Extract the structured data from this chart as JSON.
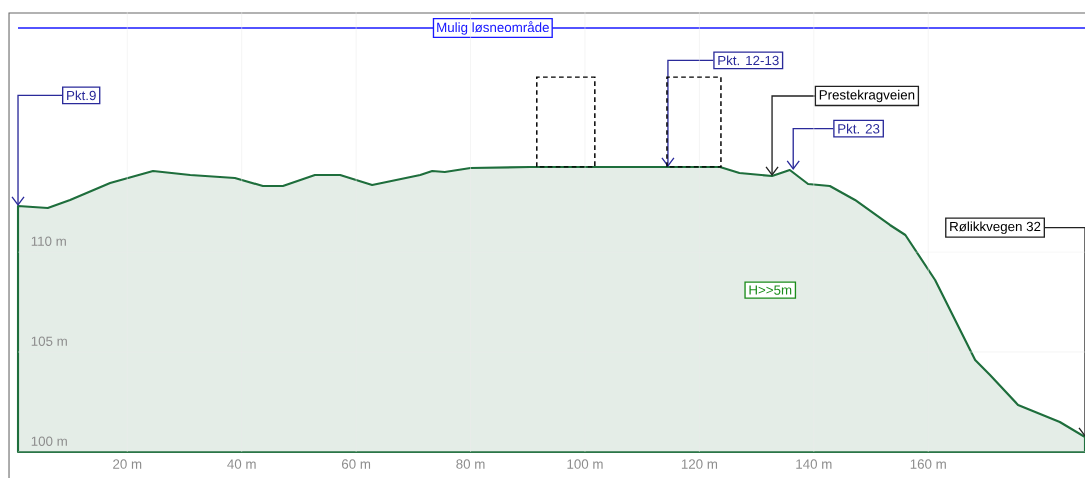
{
  "chart_data": {
    "type": "area",
    "color": "#1e6e3c",
    "x": [
      0.9,
      6.1,
      10,
      17,
      24.5,
      31,
      38.8,
      43.7,
      47.2,
      52.8,
      57.2,
      62.8,
      71.2,
      73.3,
      75.5,
      80,
      90.4,
      102.6,
      123.6,
      127,
      132.7,
      135.8,
      139,
      142.8,
      147.2,
      153.3,
      156,
      161.2,
      168.2,
      170.8,
      175.7,
      183,
      187.4
    ],
    "values": [
      112.3,
      112.2,
      112.6,
      113.45,
      114.05,
      113.85,
      113.7,
      113.3,
      113.3,
      113.85,
      113.85,
      113.35,
      113.85,
      114.05,
      114,
      114.2,
      114.25,
      114.25,
      114.25,
      113.95,
      113.8,
      114.1,
      113.4,
      113.3,
      112.6,
      111.35,
      110.85,
      108.6,
      104.6,
      103.85,
      102.35,
      101.5,
      100.75
    ],
    "xlim": [
      0.9,
      187.4
    ],
    "ylim": [
      100,
      122
    ],
    "xticks": [
      {
        "value": 20,
        "label": "20 m"
      },
      {
        "value": 40,
        "label": "40 m"
      },
      {
        "value": 60,
        "label": "60 m"
      },
      {
        "value": 80,
        "label": "80 m"
      },
      {
        "value": 100,
        "label": "100 m"
      },
      {
        "value": 120,
        "label": "120 m"
      },
      {
        "value": 140,
        "label": "140 m"
      },
      {
        "value": 160,
        "label": "160 m"
      }
    ],
    "yticks": [
      {
        "value": 100,
        "label": "100 m"
      },
      {
        "value": 105,
        "label": "105 m"
      },
      {
        "value": 110,
        "label": "110 m"
      }
    ],
    "grid": true,
    "annotations": [
      {
        "text": "Pkt.9",
        "x": 0.9,
        "y": 112.3
      },
      {
        "text": "Pkt. 12-13",
        "x": 114.5,
        "y": 114.25
      },
      {
        "text": "Prestekragveien",
        "x": 132.7,
        "y": 113.8
      },
      {
        "text": "Pkt. 23",
        "x": 136.4,
        "y": 114.1
      },
      {
        "text": "Rølikkvegen 32",
        "x": 187.4,
        "y": 100.75
      },
      "H>>5m"
    ],
    "ref_lines": [
      {
        "axis": "y",
        "value": 121.2,
        "label": "Mulig løsneområde",
        "color": "#1a1aff"
      }
    ]
  }
}
